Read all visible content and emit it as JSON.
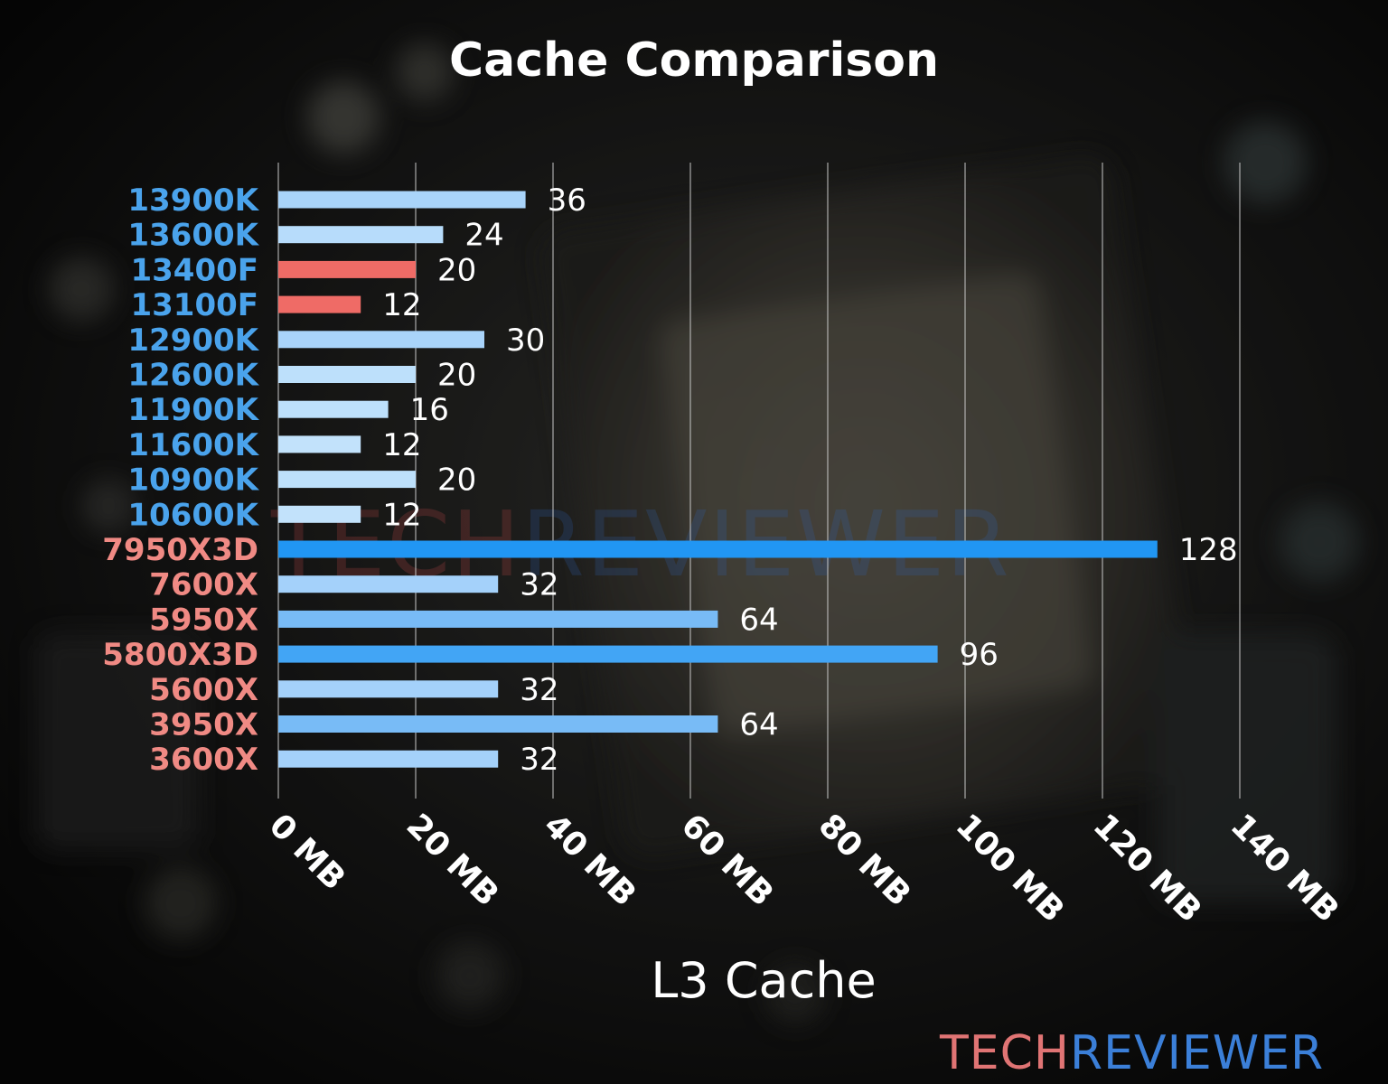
{
  "chart_data": {
    "type": "bar",
    "orientation": "horizontal",
    "title": "Cache Comparison",
    "xlabel": "L3 Cache",
    "ylabel": "",
    "xlim": [
      0,
      140
    ],
    "x_ticks": [
      {
        "value": 0,
        "label": "0 MB"
      },
      {
        "value": 20,
        "label": "20 MB"
      },
      {
        "value": 40,
        "label": "40 MB"
      },
      {
        "value": 60,
        "label": "60 MB"
      },
      {
        "value": 80,
        "label": "80 MB"
      },
      {
        "value": 100,
        "label": "100 MB"
      },
      {
        "value": 120,
        "label": "120 MB"
      },
      {
        "value": 140,
        "label": "140 MB"
      }
    ],
    "grid": "vertical",
    "legend": "none",
    "categories": [
      "13900K",
      "13600K",
      "13400F",
      "13100F",
      "12900K",
      "12600K",
      "11900K",
      "11600K",
      "10900K",
      "10600K",
      "7950X3D",
      "7600X",
      "5950X",
      "5800X3D",
      "5600X",
      "3950X",
      "3600X"
    ],
    "values": [
      36,
      24,
      20,
      12,
      30,
      20,
      16,
      12,
      20,
      12,
      128,
      32,
      64,
      96,
      32,
      64,
      32
    ],
    "value_labels": [
      "36",
      "24",
      "20",
      "12",
      "30",
      "20",
      "16",
      "12",
      "20",
      "12",
      "128",
      "32",
      "64",
      "96",
      "32",
      "64",
      "32"
    ],
    "category_colors": [
      "#4aa3ec",
      "#4aa3ec",
      "#4aa3ec",
      "#4aa3ec",
      "#4aa3ec",
      "#4aa3ec",
      "#4aa3ec",
      "#4aa3ec",
      "#4aa3ec",
      "#4aa3ec",
      "#f08a84",
      "#f08a84",
      "#f08a84",
      "#f08a84",
      "#f08a84",
      "#f08a84",
      "#f08a84"
    ],
    "bar_colors": [
      "#a9d4fa",
      "#b7dcfb",
      "#ef6b66",
      "#ef6b66",
      "#a9d4fa",
      "#bde0fb",
      "#bde0fb",
      "#c2e2fb",
      "#bde0fb",
      "#c2e2fb",
      "#2196f3",
      "#a4d1fa",
      "#78bbf6",
      "#42a5f5",
      "#a4d1fa",
      "#78bbf6",
      "#a4d1fa"
    ]
  },
  "watermark": {
    "part1": "TECH",
    "part2": "REVIEWER"
  },
  "logo": {
    "part1": "TECH",
    "part2": "REVIEWER"
  },
  "colors": {
    "title": "#ffffff",
    "value_label": "#ffffff",
    "tick_label": "#ffffff",
    "grid": "#cfcfcf",
    "logo_tech": "#e07474",
    "logo_reviewer": "#3b7fd8"
  }
}
